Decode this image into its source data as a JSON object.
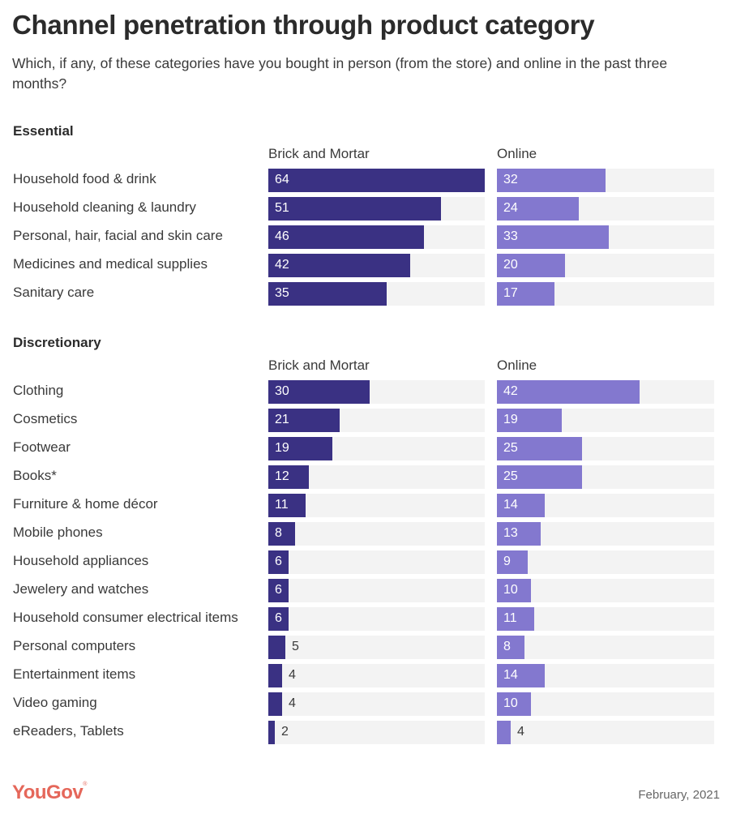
{
  "colors": {
    "brick_and_mortar": "#3a3183",
    "online": "#8378cf",
    "track": "#f3f3f3",
    "logo": "#e5675a"
  },
  "chart_data": {
    "type": "bar",
    "orientation": "horizontal",
    "title": "Channel penetration through product category",
    "subtitle": "Which, if any, of these categories have you bought in person (from the store) and online in the past three months?",
    "xlim": [
      0,
      64
    ],
    "series_names": [
      "Brick and Mortar",
      "Online"
    ],
    "groups": [
      {
        "name": "Essential",
        "col_heads": [
          "Brick and Mortar",
          "Online"
        ],
        "categories": [
          "Household food & drink",
          "Household cleaning & laundry",
          "Personal, hair, facial and skin care",
          "Medicines and medical supplies",
          "Sanitary care"
        ],
        "series": [
          {
            "name": "Brick and Mortar",
            "values": [
              64,
              51,
              46,
              42,
              35
            ]
          },
          {
            "name": "Online",
            "values": [
              32,
              24,
              33,
              20,
              17
            ]
          }
        ]
      },
      {
        "name": "Discretionary",
        "col_heads": [
          "Brick and Mortar",
          "Online"
        ],
        "categories": [
          "Clothing",
          "Cosmetics",
          "Footwear",
          "Books*",
          "Furniture & home décor",
          "Mobile phones",
          "Household appliances",
          "Jewelery and watches",
          "Household consumer electrical items",
          "Personal computers",
          "Entertainment items",
          "Video gaming",
          "eReaders, Tablets"
        ],
        "series": [
          {
            "name": "Brick and Mortar",
            "values": [
              30,
              21,
              19,
              12,
              11,
              8,
              6,
              6,
              6,
              5,
              4,
              4,
              2
            ]
          },
          {
            "name": "Online",
            "values": [
              42,
              19,
              25,
              25,
              14,
              13,
              9,
              10,
              11,
              8,
              14,
              10,
              4
            ]
          }
        ]
      }
    ]
  },
  "footer": {
    "logo": "YouGov",
    "date": "February, 2021"
  }
}
